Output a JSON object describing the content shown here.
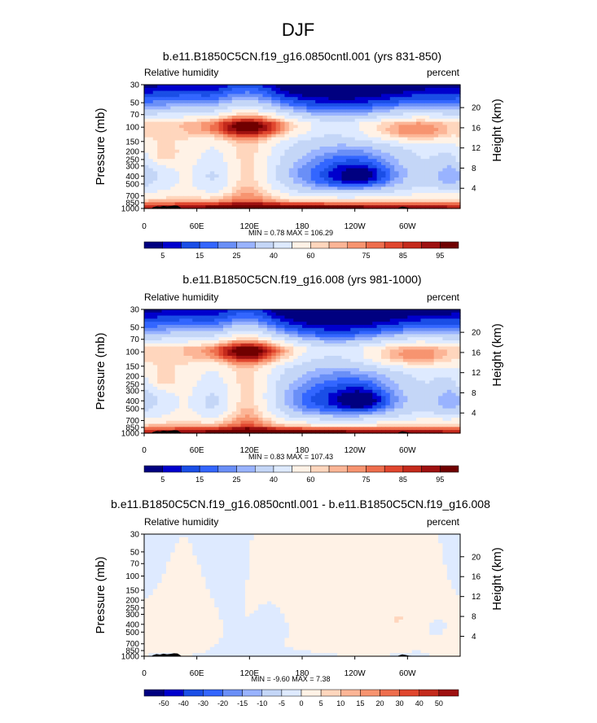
{
  "figure": {
    "title": "DJF"
  },
  "colors": {
    "absolute_levels": [
      "#000080",
      "#0000cd",
      "#1a4ee6",
      "#3366ff",
      "#6a8ff7",
      "#99b3ff",
      "#c4d6f7",
      "#deeaff",
      "#fff2e6",
      "#ffd6bd",
      "#fcb596",
      "#f79470",
      "#ee6e4d",
      "#e0462e",
      "#c42a1c",
      "#9e1010",
      "#700000"
    ],
    "diff_levels": [
      "#000080",
      "#0000cd",
      "#1a4ee6",
      "#3366ff",
      "#6a8ff7",
      "#99b3ff",
      "#c4d6f7",
      "#deeaff",
      "#fff2e6",
      "#ffd6bd",
      "#fcb596",
      "#f79470",
      "#ee6e4d",
      "#e0462e",
      "#c42a1c",
      "#9e1010",
      "#700000"
    ],
    "topography": "#000000"
  },
  "chart_data": [
    {
      "type": "heatmap",
      "title": "b.e11.B1850C5CN.f19_g16.0850cntl.001 (yrs 831-850)",
      "left_label": "Relative humidity",
      "right_label": "percent",
      "ylabel": "Pressure (mb)",
      "ylabel_right": "Height (km)",
      "x_ticks": [
        "0",
        "60E",
        "120E",
        "180",
        "120W",
        "60W"
      ],
      "x_tick_values": [
        0,
        60,
        120,
        180,
        240,
        300
      ],
      "xlim": [
        0,
        360
      ],
      "y_ticks": [
        "30",
        "50",
        "70",
        "100",
        "150",
        "200",
        "250",
        "300",
        "400",
        "500",
        "700",
        "850",
        "1000"
      ],
      "y_tick_values": [
        30,
        50,
        70,
        100,
        150,
        200,
        250,
        300,
        400,
        500,
        700,
        850,
        1000
      ],
      "ylim": [
        1000,
        30
      ],
      "height_ticks": [
        "20",
        "16",
        "12",
        "8",
        "4"
      ],
      "height_tick_values": [
        20,
        16,
        12,
        8,
        4
      ],
      "stats": "MIN =   0.78  MAX = 106.29",
      "min": 0.78,
      "max": 106.29,
      "colorbar": {
        "levels": [
          5,
          10,
          15,
          20,
          25,
          30,
          40,
          50,
          60,
          65,
          70,
          75,
          80,
          85,
          90,
          95
        ],
        "labels": [
          "5",
          "15",
          "25",
          "40",
          "60",
          "75",
          "85",
          "95"
        ]
      },
      "field": {
        "base": 60,
        "lapse_high": 35,
        "lapse_mid": 12,
        "features": [
          {
            "lon": 230,
            "lat_p": 380,
            "amp": -48,
            "w_lon": 70,
            "w_p": 230
          },
          {
            "lon": 245,
            "lat_p": 390,
            "amp": -14,
            "w_lon": 20,
            "w_p": 90
          },
          {
            "lon": 80,
            "lat_p": 420,
            "amp": -20,
            "w_lon": 18,
            "w_p": 200
          },
          {
            "lon": 350,
            "lat_p": 400,
            "amp": -22,
            "w_lon": 16,
            "w_p": 180
          },
          {
            "lon": 25,
            "lat_p": 400,
            "amp": -10,
            "w_lon": 15,
            "w_p": 200
          },
          {
            "lon": 118,
            "lat_p": 500,
            "amp": 18,
            "w_lon": 22,
            "w_p": 400
          },
          {
            "lon": 120,
            "lat_p": 100,
            "amp": 38,
            "w_lon": 40,
            "w_p": 25
          },
          {
            "lon": 300,
            "lat_p": 110,
            "amp": 28,
            "w_lon": 45,
            "w_p": 30
          },
          {
            "lon": 20,
            "lat_p": 220,
            "amp": 15,
            "w_lon": 15,
            "w_p": 60
          },
          {
            "lon": 180,
            "lat_p": 950,
            "amp": 28,
            "w_lon": 200,
            "w_p": 70
          }
        ]
      }
    },
    {
      "type": "heatmap",
      "title": "b.e11.B1850C5CN.f19_g16.008 (yrs 981-1000)",
      "left_label": "Relative humidity",
      "right_label": "percent",
      "ylabel": "Pressure (mb)",
      "ylabel_right": "Height (km)",
      "x_ticks": [
        "0",
        "60E",
        "120E",
        "180",
        "120W",
        "60W"
      ],
      "x_tick_values": [
        0,
        60,
        120,
        180,
        240,
        300
      ],
      "xlim": [
        0,
        360
      ],
      "y_ticks": [
        "30",
        "50",
        "70",
        "100",
        "150",
        "200",
        "250",
        "300",
        "400",
        "500",
        "700",
        "850",
        "1000"
      ],
      "y_tick_values": [
        30,
        50,
        70,
        100,
        150,
        200,
        250,
        300,
        400,
        500,
        700,
        850,
        1000
      ],
      "ylim": [
        1000,
        30
      ],
      "height_ticks": [
        "20",
        "16",
        "12",
        "8",
        "4"
      ],
      "height_tick_values": [
        20,
        16,
        12,
        8,
        4
      ],
      "stats": "MIN =   0.83  MAX = 107.43",
      "min": 0.83,
      "max": 107.43,
      "colorbar": {
        "levels": [
          5,
          10,
          15,
          20,
          25,
          30,
          40,
          50,
          60,
          65,
          70,
          75,
          80,
          85,
          90,
          95
        ],
        "labels": [
          "5",
          "15",
          "25",
          "40",
          "60",
          "75",
          "85",
          "95"
        ]
      },
      "field": {
        "base": 60,
        "lapse_high": 35,
        "lapse_mid": 12,
        "features": [
          {
            "lon": 225,
            "lat_p": 380,
            "amp": -50,
            "w_lon": 72,
            "w_p": 240
          },
          {
            "lon": 248,
            "lat_p": 400,
            "amp": -16,
            "w_lon": 18,
            "w_p": 90
          },
          {
            "lon": 80,
            "lat_p": 420,
            "amp": -20,
            "w_lon": 18,
            "w_p": 200
          },
          {
            "lon": 350,
            "lat_p": 400,
            "amp": -22,
            "w_lon": 16,
            "w_p": 180
          },
          {
            "lon": 25,
            "lat_p": 400,
            "amp": -10,
            "w_lon": 15,
            "w_p": 200
          },
          {
            "lon": 118,
            "lat_p": 500,
            "amp": 22,
            "w_lon": 22,
            "w_p": 380
          },
          {
            "lon": 120,
            "lat_p": 100,
            "amp": 38,
            "w_lon": 40,
            "w_p": 25
          },
          {
            "lon": 300,
            "lat_p": 110,
            "amp": 28,
            "w_lon": 45,
            "w_p": 30
          },
          {
            "lon": 20,
            "lat_p": 220,
            "amp": 15,
            "w_lon": 15,
            "w_p": 60
          },
          {
            "lon": 180,
            "lat_p": 950,
            "amp": 28,
            "w_lon": 200,
            "w_p": 70
          }
        ]
      }
    },
    {
      "type": "heatmap",
      "title": "b.e11.B1850C5CN.f19_g16.0850cntl.001 - b.e11.B1850C5CN.f19_g16.008",
      "left_label": "Relative humidity",
      "right_label": "percent",
      "ylabel": "Pressure (mb)",
      "ylabel_right": "Height (km)",
      "x_ticks": [
        "0",
        "60E",
        "120E",
        "180",
        "120W",
        "60W"
      ],
      "x_tick_values": [
        0,
        60,
        120,
        180,
        240,
        300
      ],
      "xlim": [
        0,
        360
      ],
      "y_ticks": [
        "30",
        "50",
        "70",
        "100",
        "150",
        "200",
        "250",
        "300",
        "400",
        "500",
        "700",
        "850",
        "1000"
      ],
      "y_tick_values": [
        30,
        50,
        70,
        100,
        150,
        200,
        250,
        300,
        400,
        500,
        700,
        850,
        1000
      ],
      "ylim": [
        1000,
        30
      ],
      "height_ticks": [
        "20",
        "16",
        "12",
        "8",
        "4"
      ],
      "height_tick_values": [
        20,
        16,
        12,
        8,
        4
      ],
      "stats": "MIN =  -9.60  MAX =   7.38",
      "min": -9.6,
      "max": 7.38,
      "colorbar": {
        "levels": [
          -50,
          -40,
          -30,
          -20,
          -15,
          -10,
          -5,
          0,
          5,
          10,
          15,
          20,
          30,
          40,
          50
        ],
        "labels": [
          "-50",
          "-40",
          "-30",
          "-20",
          "-15",
          "-10",
          "-5",
          "0",
          "5",
          "10",
          "15",
          "20",
          "30",
          "40",
          "50"
        ]
      },
      "field": {
        "base": -1,
        "lapse_high": 0,
        "lapse_mid": 0,
        "features": [
          {
            "lon": 45,
            "lat_p": 500,
            "amp": 4,
            "w_lon": 25,
            "w_p": 280
          },
          {
            "lon": 165,
            "lat_p": 300,
            "amp": 5,
            "w_lon": 30,
            "w_p": 250
          },
          {
            "lon": 250,
            "lat_p": 500,
            "amp": 4,
            "w_lon": 45,
            "w_p": 300
          },
          {
            "lon": 300,
            "lat_p": 300,
            "amp": 4,
            "w_lon": 30,
            "w_p": 200
          },
          {
            "lon": 345,
            "lat_p": 750,
            "amp": 3,
            "w_lon": 15,
            "w_p": 200
          },
          {
            "lon": 150,
            "lat_p": 400,
            "amp": -6,
            "w_lon": 15,
            "w_p": 160
          },
          {
            "lon": 330,
            "lat_p": 450,
            "amp": -3,
            "w_lon": 12,
            "w_p": 120
          }
        ]
      }
    }
  ]
}
